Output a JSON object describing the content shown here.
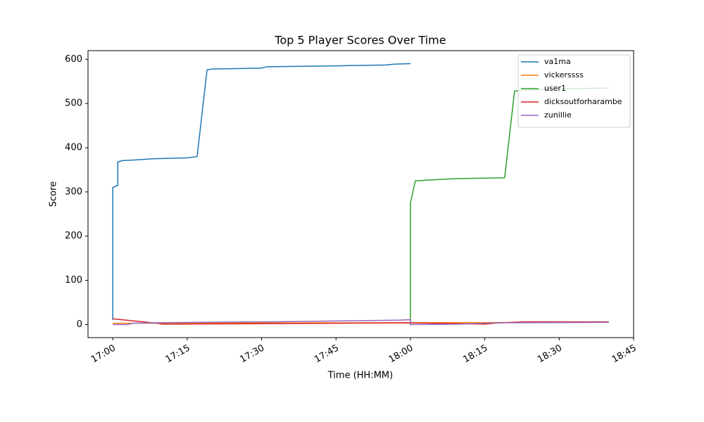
{
  "chart_data": {
    "type": "line",
    "title": "Top 5 Player Scores Over Time",
    "x_label": "Time (HH:MM)",
    "y_label": "Score",
    "xlim": [
      "16:55",
      "18:45"
    ],
    "xticks": [
      "17:00",
      "17:15",
      "17:30",
      "17:45",
      "18:00",
      "18:15",
      "18:30",
      "18:45"
    ],
    "ylim": [
      -29.5,
      619.5
    ],
    "yticks": [
      0,
      100,
      200,
      300,
      400,
      500,
      600
    ],
    "legend": "upper right",
    "series": [
      {
        "name": "va1ma",
        "color": "#1f77b4",
        "x": [
          "17:00",
          "17:00",
          "17:00",
          "17:01",
          "17:01",
          "17:02",
          "17:04",
          "17:08",
          "17:15",
          "17:17",
          "17:19",
          "17:20",
          "17:30",
          "17:31",
          "17:44",
          "17:55",
          "17:57",
          "18:00"
        ],
        "values": [
          10,
          170,
          310,
          315,
          368,
          371,
          372,
          375,
          377,
          380,
          576,
          578,
          580,
          583,
          585,
          587,
          589,
          590
        ]
      },
      {
        "name": "vickerssss",
        "color": "#ff7f0e",
        "x": [
          "17:00",
          "18:40"
        ],
        "values": [
          3,
          5
        ]
      },
      {
        "name": "user1",
        "color": "#2ca02c",
        "x": [
          "18:00",
          "18:00",
          "18:00",
          "18:00",
          "18:01",
          "18:04",
          "18:09",
          "18:14",
          "18:19",
          "18:21",
          "18:23",
          "18:30",
          "18:40"
        ],
        "values": [
          0,
          135,
          272,
          275,
          325,
          327,
          330,
          331,
          332,
          528,
          530,
          533,
          535
        ]
      },
      {
        "name": "dicksoutforharambe",
        "color": "#d62728",
        "x": [
          "17:00",
          "17:09",
          "17:10",
          "17:30",
          "17:45",
          "18:00",
          "18:10",
          "18:15",
          "18:18",
          "18:23",
          "18:40"
        ],
        "values": [
          13,
          3,
          1,
          2,
          3,
          4,
          2,
          1,
          4,
          6,
          6
        ]
      },
      {
        "name": "zunillie",
        "color": "#9467bd",
        "x": [
          "17:00",
          "17:03",
          "17:04",
          "17:08",
          "17:17",
          "17:30",
          "17:45",
          "17:58",
          "18:00",
          "18:00",
          "18:10",
          "18:15",
          "18:18",
          "18:40"
        ],
        "values": [
          0,
          0,
          3,
          4,
          5,
          6,
          8,
          10,
          11,
          0,
          1,
          3,
          4,
          5
        ]
      }
    ]
  }
}
